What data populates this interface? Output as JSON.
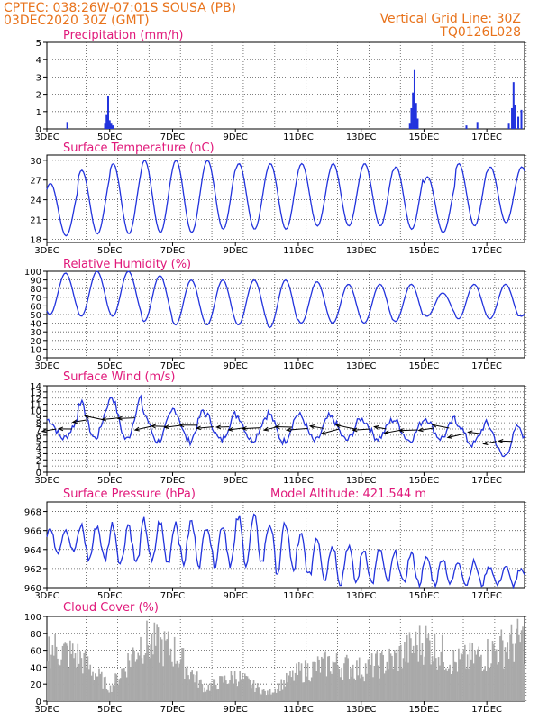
{
  "header": {
    "line1": "CPTEC:   038:26W-07:01S   SOUSA (PB)",
    "line2": "03DEC2020 30Z (GMT)",
    "right1": "Vertical Grid Line: 30Z",
    "right2": "TQ0126L028"
  },
  "x_tick_labels": [
    "3DEC",
    "5DEC",
    "7DEC",
    "9DEC",
    "11DEC",
    "13DEC",
    "15DEC",
    "17DEC"
  ],
  "colors": {
    "header": "#e8731c",
    "title": "#e0187a",
    "series": "#2233dd",
    "cloud": "#a9a9a9"
  },
  "chart_data": [
    {
      "type": "bar",
      "title": "Precipitation (mm/h)",
      "ylim": [
        0,
        5
      ],
      "yticks": [
        0,
        1,
        2,
        3,
        4,
        5
      ],
      "xlim_days": [
        3,
        18.2
      ],
      "events": [
        {
          "day": 3.65,
          "value": 0.4
        },
        {
          "day": 4.85,
          "value": 0.3
        },
        {
          "day": 4.9,
          "value": 0.8
        },
        {
          "day": 4.95,
          "value": 1.9
        },
        {
          "day": 5.0,
          "value": 0.5
        },
        {
          "day": 5.05,
          "value": 0.3
        },
        {
          "day": 5.1,
          "value": 0.2
        },
        {
          "day": 14.55,
          "value": 0.3
        },
        {
          "day": 14.6,
          "value": 1.2
        },
        {
          "day": 14.65,
          "value": 2.1
        },
        {
          "day": 14.7,
          "value": 3.4
        },
        {
          "day": 14.75,
          "value": 1.5
        },
        {
          "day": 14.8,
          "value": 0.6
        },
        {
          "day": 16.35,
          "value": 0.2
        },
        {
          "day": 16.7,
          "value": 0.4
        },
        {
          "day": 17.7,
          "value": 0.3
        },
        {
          "day": 17.8,
          "value": 1.2
        },
        {
          "day": 17.85,
          "value": 2.7
        },
        {
          "day": 17.9,
          "value": 1.4
        },
        {
          "day": 18.0,
          "value": 0.7
        },
        {
          "day": 18.1,
          "value": 1.1
        }
      ]
    },
    {
      "type": "line",
      "title": "Surface Temperature (nC)",
      "ylim": [
        17.5,
        30.8
      ],
      "yticks": [
        18,
        21,
        24,
        27,
        30
      ],
      "daily_max": [
        26.5,
        28.5,
        29.5,
        30,
        30,
        30,
        29.5,
        29.5,
        29.5,
        29.5,
        29.5,
        29,
        27.5,
        29.5,
        29,
        29
      ],
      "daily_min": [
        18.5,
        18.8,
        18.8,
        19,
        19,
        19.5,
        19.5,
        19.5,
        20,
        20,
        20,
        19.5,
        19,
        20,
        20.5,
        20.5
      ]
    },
    {
      "type": "line",
      "title": "Relative Humidity (%)",
      "ylim": [
        0,
        100
      ],
      "yticks": [
        0,
        10,
        20,
        30,
        40,
        50,
        60,
        70,
        80,
        90,
        100
      ],
      "daily_max": [
        98,
        100,
        100,
        95,
        90,
        90,
        90,
        90,
        88,
        85,
        85,
        85,
        75,
        85,
        85,
        75
      ],
      "daily_min": [
        50,
        48,
        48,
        42,
        38,
        38,
        38,
        35,
        40,
        40,
        40,
        42,
        48,
        45,
        45,
        48
      ]
    },
    {
      "type": "line",
      "title": "Surface Wind (m/s)",
      "ylim": [
        0,
        14
      ],
      "yticks": [
        0,
        1,
        2,
        3,
        4,
        5,
        6,
        7,
        8,
        9,
        10,
        11,
        12,
        13,
        14
      ],
      "daily_max": [
        8.5,
        11.5,
        12.3,
        9.8,
        10.2,
        9.5,
        9.2,
        9.6,
        9.2,
        8.8,
        8.5,
        8.5,
        8.8,
        8,
        7.5,
        6.8
      ],
      "daily_min": [
        5.5,
        5.5,
        5.3,
        5,
        5,
        5.2,
        5.2,
        5,
        5,
        5.2,
        5.5,
        5.2,
        5.5,
        4.5,
        2.5,
        1.2
      ]
    },
    {
      "type": "line",
      "title": "Surface Pressure (hPa)",
      "annotation": "Model Altitude: 421.544 m",
      "ylim": [
        960,
        969
      ],
      "yticks": [
        960,
        962,
        964,
        966,
        968
      ],
      "daily_max": [
        966.5,
        967,
        967.2,
        967.5,
        967.5,
        967.2,
        968,
        967.5,
        966,
        965,
        964.5,
        964,
        963.5,
        963,
        962.5,
        962
      ],
      "daily_min": [
        963.5,
        962.5,
        962,
        962,
        962,
        962,
        962,
        961,
        960.5,
        960,
        960,
        960,
        960,
        960,
        960,
        960
      ]
    },
    {
      "type": "bar",
      "title": "Cloud Cover (%)",
      "ylim": [
        0,
        100
      ],
      "yticks": [
        0,
        20,
        40,
        60,
        80,
        100
      ],
      "daily_level": [
        85,
        70,
        20,
        95,
        80,
        20,
        40,
        12,
        45,
        60,
        50,
        65,
        95,
        60,
        75,
        95
      ]
    }
  ]
}
